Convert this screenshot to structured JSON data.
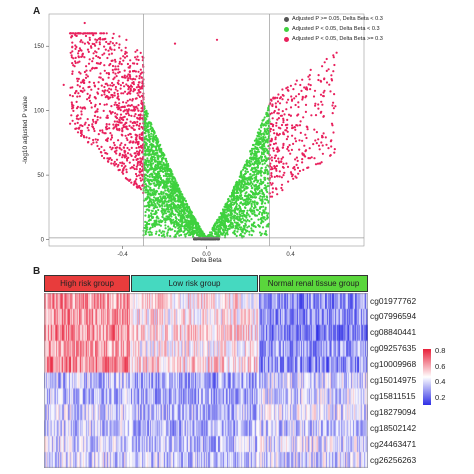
{
  "panel_a_label": "A",
  "panel_b_label": "B",
  "chart_data": [
    {
      "type": "scatter",
      "subtype": "volcano",
      "xlabel": "Delta Beta",
      "ylabel": "-log10 adjusted P value",
      "xlim": [
        -0.75,
        0.75
      ],
      "ylim": [
        -5,
        175
      ],
      "xticks": [
        -0.4,
        0.0,
        0.4
      ],
      "xtick_labels": [
        "-0.4",
        "0.0",
        "0.4"
      ],
      "yticks": [
        0,
        50,
        100,
        150
      ],
      "ytick_labels": [
        "0",
        "50",
        "100",
        "150"
      ],
      "threshold_lines": {
        "delta_beta": [
          -0.3,
          0.3
        ],
        "neg_log10_p": 1.3
      },
      "legend_position": "top-right",
      "series": [
        {
          "name": "Adjusted P >= 0.05, Delta Beta < 0.3",
          "color": "#555555"
        },
        {
          "name": "Adjusted P < 0.05, Delta Beta < 0.3",
          "color": "#3fd13f"
        },
        {
          "name": "Adjusted P < 0.05, Delta Beta >= 0.3",
          "color": "#e8205c"
        }
      ]
    },
    {
      "type": "heatmap",
      "groups": [
        {
          "label": "High risk group",
          "color": "#e83c3c"
        },
        {
          "label": "Low risk group",
          "color": "#45d9c0"
        },
        {
          "label": "Normal renal tissue group",
          "color": "#5ad63c"
        }
      ],
      "rows": [
        "cg01977762",
        "cg07996594",
        "cg08840441",
        "cg09257635",
        "cg10009968",
        "cg15014975",
        "cg15811515",
        "cg18279094",
        "cg18502142",
        "cg24463471",
        "cg26256263"
      ],
      "colorbar": {
        "ticks": [
          "0.8",
          "0.6",
          "0.4",
          "0.2"
        ],
        "low_color": "#2f2fe6",
        "mid_color": "#ffffff",
        "high_color": "#e8203a"
      }
    }
  ]
}
